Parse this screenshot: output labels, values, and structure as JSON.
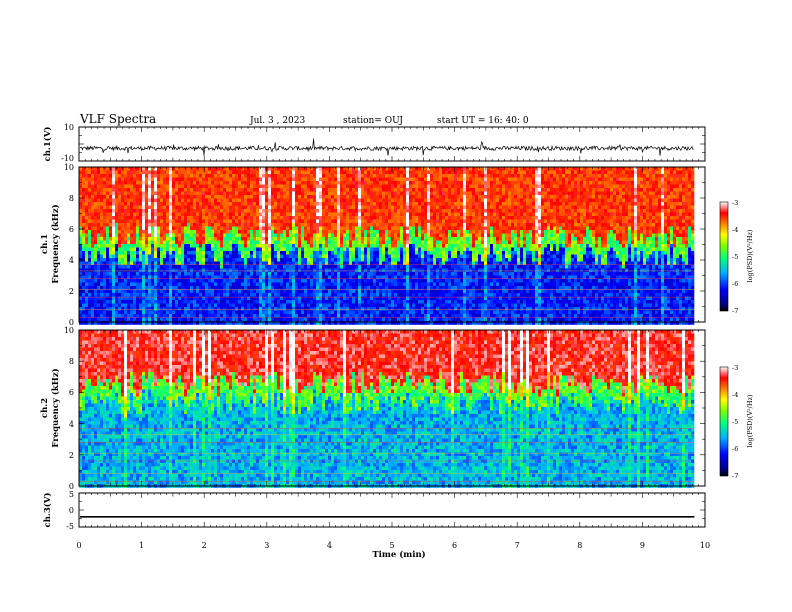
{
  "header": {
    "title": "VLF Spectra",
    "date": "Jul. 3 , 2023",
    "station": "station= OUJ",
    "start_ut": "start UT = 16: 40: 0"
  },
  "chart_data": [
    {
      "type": "line",
      "panel": "ch1_waveform",
      "ylabel": "ch.1(V)",
      "ylim": [
        -10,
        10
      ],
      "yticks": [
        "10",
        "-10"
      ],
      "xlim": [
        0,
        10
      ],
      "data_extent_min": 9.83,
      "baseline_v": -2.5,
      "noise_amplitude_v": 1.2
    },
    {
      "type": "heatmap",
      "panel": "ch1_spectrogram",
      "ylabel_line1": "ch.1",
      "ylabel_line2": "Frequency (kHz)",
      "ylim": [
        0,
        10
      ],
      "yticks": [
        "0",
        "2",
        "4",
        "6",
        "8",
        "10"
      ],
      "xlim": [
        0,
        10
      ],
      "data_extent_min": 9.83,
      "band_boundary_khz": 4.3,
      "colorbar": {
        "label": "log(PSD)(V²/Hz)",
        "range": [
          -7,
          -3
        ],
        "ticks": [
          "-3",
          "-4",
          "-5",
          "-6",
          "-7"
        ]
      }
    },
    {
      "type": "heatmap",
      "panel": "ch2_spectrogram",
      "ylabel_line1": "ch.2",
      "ylabel_line2": "Frequency (kHz)",
      "ylim": [
        0,
        10
      ],
      "yticks": [
        "0",
        "2",
        "4",
        "6",
        "8",
        "10"
      ],
      "xlim": [
        0,
        10
      ],
      "data_extent_min": 9.83,
      "band_boundary_khz": 5.3,
      "colorbar": {
        "label": "log(PSD)(V²/Hz)",
        "range": [
          -7,
          -3
        ],
        "ticks": [
          "-3",
          "-4",
          "-5",
          "-6",
          "-7"
        ]
      }
    },
    {
      "type": "line",
      "panel": "ch3_waveform",
      "ylabel": "ch.3(V)",
      "ylim": [
        -5,
        5
      ],
      "yticks": [
        "5",
        "0",
        "-5"
      ],
      "xlim": [
        0,
        10
      ],
      "data_extent_min": 9.83,
      "baseline_v": -2.0
    }
  ],
  "xaxis": {
    "label": "Time (min)",
    "ticks": [
      "0",
      "1",
      "2",
      "3",
      "4",
      "5",
      "6",
      "7",
      "8",
      "9",
      "10"
    ]
  }
}
